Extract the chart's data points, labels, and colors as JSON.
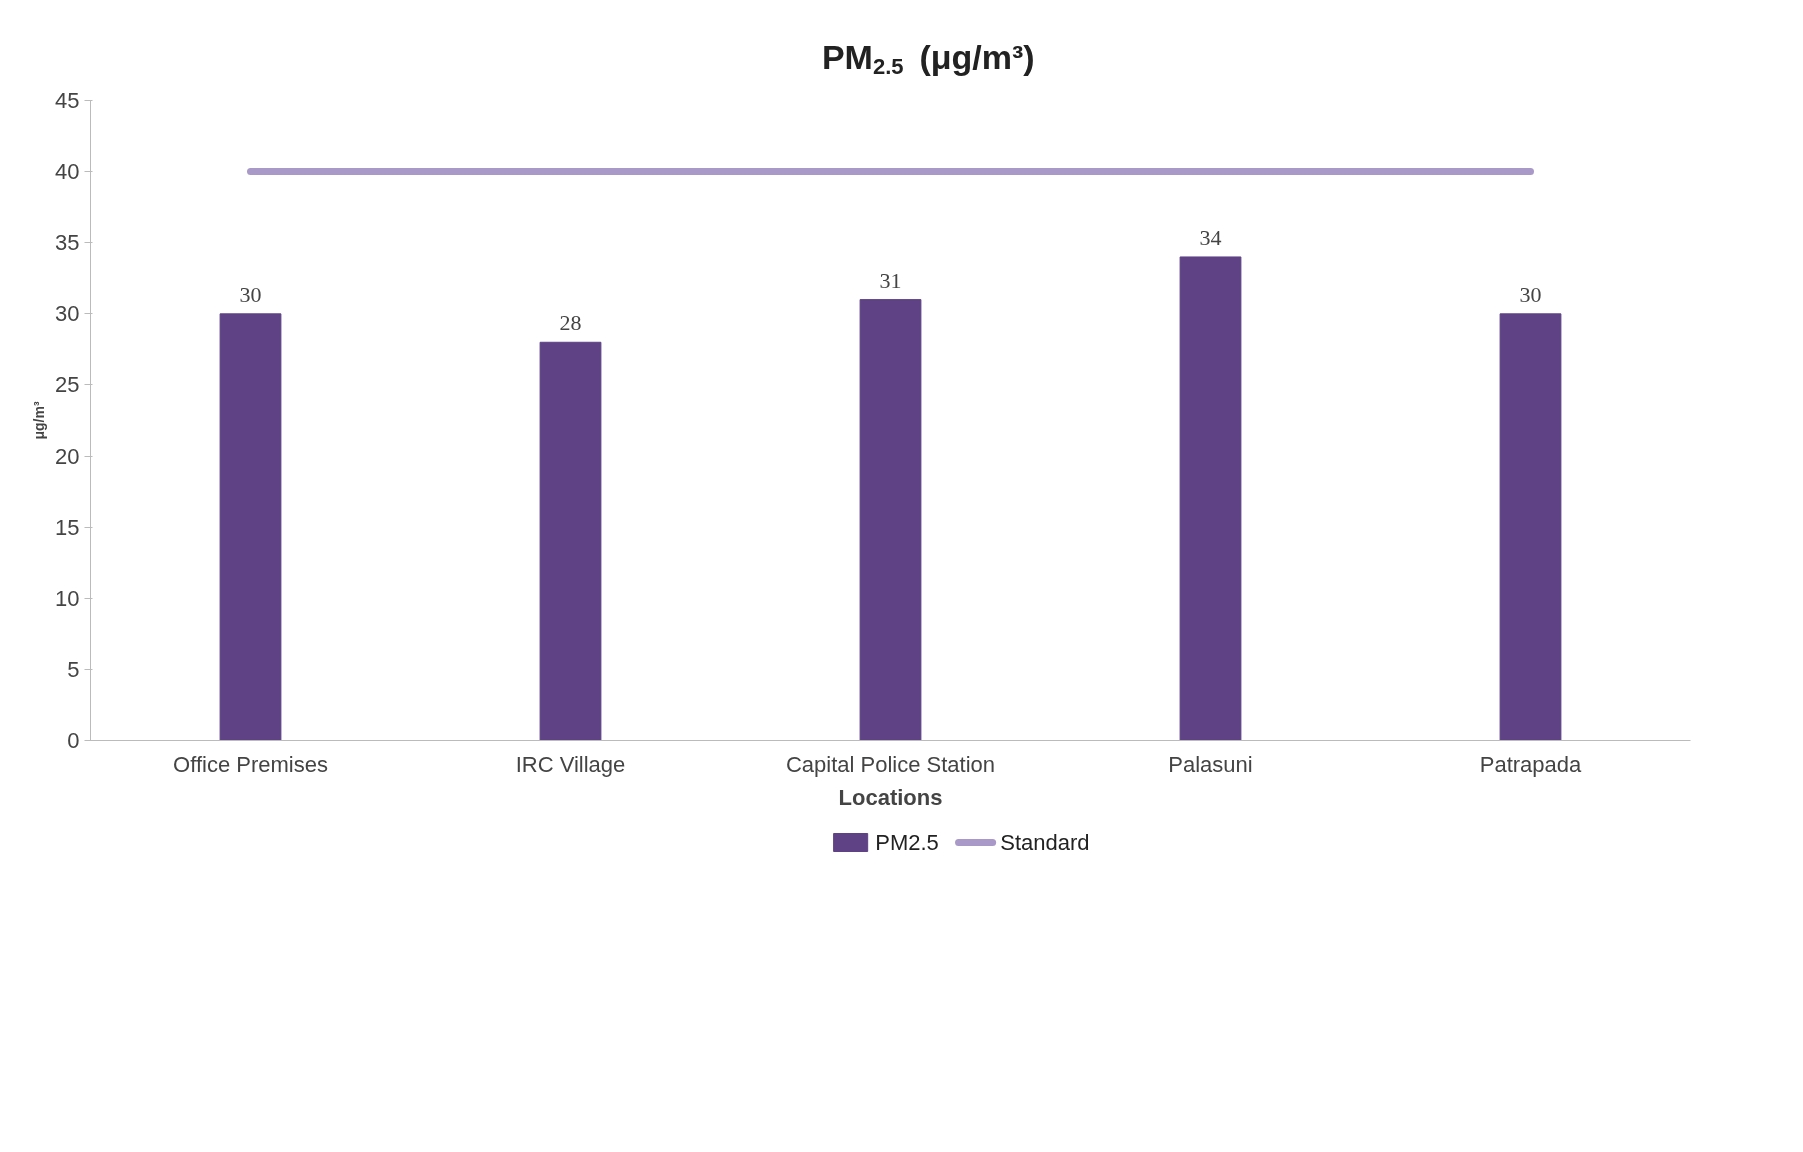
{
  "chart_data": {
    "type": "bar",
    "title": "PM$_{2.5}$ (μg/m³)",
    "xlabel": "Locations",
    "ylabel": "μg/m³",
    "categories": [
      "Office Premises",
      "IRC Village",
      "Capital Police Station",
      "Palasuni",
      "Patrapada"
    ],
    "series": [
      {
        "name": "PM2.5",
        "color": "#5f4285",
        "values": [
          30,
          28,
          31,
          34,
          30
        ],
        "value_labels": [
          "30",
          "28",
          "31",
          "34",
          "30"
        ]
      },
      {
        "name": "Standard",
        "type": "line",
        "color": "#a899c8",
        "values": [
          40,
          40,
          40,
          40,
          40
        ]
      }
    ],
    "ylim": [
      0,
      45
    ],
    "yticks": [
      0,
      5,
      10,
      15,
      20,
      25,
      30,
      35,
      40,
      45
    ],
    "grid": false,
    "legend": "bottom",
    "marker": "none",
    "line_style": "solid"
  }
}
